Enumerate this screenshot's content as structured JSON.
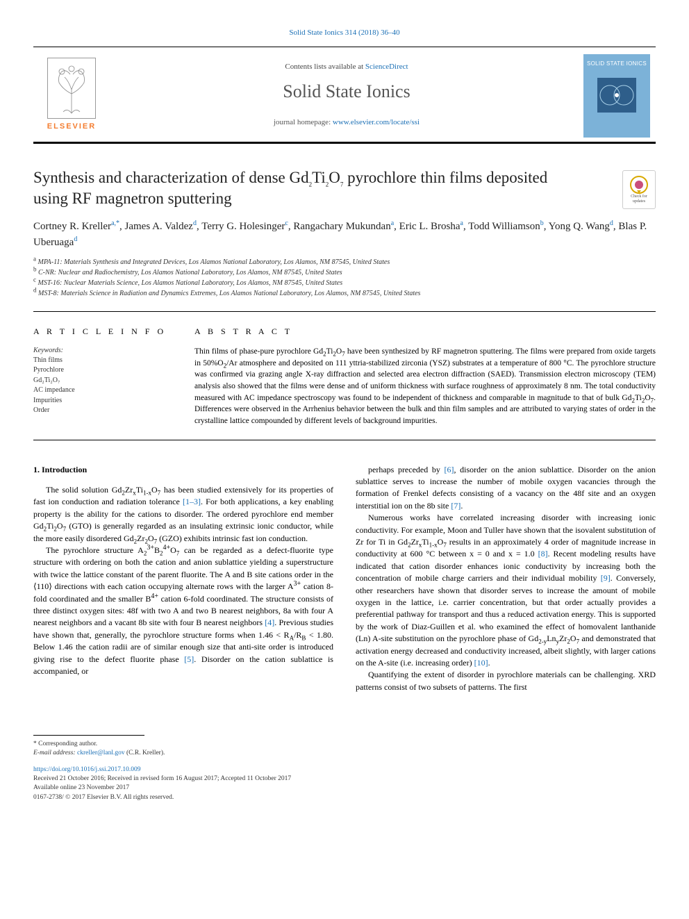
{
  "colors": {
    "link": "#1a6fb5",
    "elsevier_orange": "#f47d30",
    "cover_bg": "#7cb2d8",
    "text": "#000000",
    "muted": "#555555",
    "background": "#ffffff",
    "rule": "#000000"
  },
  "typography": {
    "body_family": "Georgia, 'Times New Roman', serif",
    "journal_name_pt": 26,
    "title_pt": 23,
    "authors_pt": 15,
    "body_pt": 12,
    "abstract_pt": 11.5,
    "affil_pt": 10,
    "footer_pt": 9.5
  },
  "header": {
    "top_citation_prefix": "",
    "top_citation_link_text": "Solid State Ionics 314 (2018) 36–40",
    "contents_prefix": "Contents lists available at ",
    "contents_link": "ScienceDirect",
    "journal_name": "Solid State Ionics",
    "homepage_prefix": "journal homepage: ",
    "homepage_url": "www.elsevier.com/locate/ssi",
    "elsevier_word": "ELSEVIER",
    "cover_title": "SOLID STATE IONICS"
  },
  "check_badge": {
    "line1": "Check for",
    "line2": "updates"
  },
  "title_html": "Synthesis and characterization of dense Gd<sub>2</sub>Ti<sub>2</sub>O<sub>7</sub> pyrochlore thin films deposited using RF magnetron sputtering",
  "authors_html": "Cortney R. Kreller<sup>a,*</sup>, James A. Valdez<sup>d</sup>, Terry G. Holesinger<sup>c</sup>, Rangachary Mukundan<sup>a</sup>, Eric L. Brosha<sup>a</sup>, Todd Williamson<sup>b</sup>, Yong Q. Wang<sup>d</sup>, Blas P. Uberuaga<sup>d</sup>",
  "affiliations": [
    {
      "sup": "a",
      "text": "MPA-11: Materials Synthesis and Integrated Devices, Los Alamos National Laboratory, Los Alamos, NM 87545, United States"
    },
    {
      "sup": "b",
      "text": "C-NR: Nuclear and Radiochemistry, Los Alamos National Laboratory, Los Alamos, NM 87545, United States"
    },
    {
      "sup": "c",
      "text": "MST-16: Nuclear Materials Science, Los Alamos National Laboratory, Los Alamos, NM 87545, United States"
    },
    {
      "sup": "d",
      "text": "MST-8: Materials Science in Radiation and Dynamics Extremes, Los Alamos National Laboratory, Los Alamos, NM 87545, United States"
    }
  ],
  "article_info": {
    "heading": "A R T I C L E  I N F O",
    "keywords_label": "Keywords:",
    "keywords": [
      "Thin films",
      "Pyrochlore",
      "Gd₂Ti₂O₇",
      "AC impedance",
      "Impurities",
      "Order"
    ]
  },
  "abstract": {
    "heading": "A B S T R A C T",
    "text_html": "Thin films of phase-pure pyrochlore Gd<sub>2</sub>Ti<sub>2</sub>O<sub>7</sub> have been synthesized by RF magnetron sputtering. The films were prepared from oxide targets in 50%O<sub>2</sub>/Ar atmosphere and deposited on 111 yttria-stabilized zirconia (YSZ) substrates at a temperature of 800 °C. The pyrochlore structure was confirmed via grazing angle X-ray diffraction and selected area electron diffraction (SAED). Transmission electron microscopy (TEM) analysis also showed that the films were dense and of uniform thickness with surface roughness of approximately 8 nm. The total conductivity measured with AC impedance spectroscopy was found to be independent of thickness and comparable in magnitude to that of bulk Gd<sub>2</sub>Ti<sub>2</sub>O<sub>7</sub>. Differences were observed in the Arrhenius behavior between the bulk and thin film samples and are attributed to varying states of order in the crystalline lattice compounded by different levels of background impurities."
  },
  "body": {
    "intro_heading": "1. Introduction",
    "paragraphs_html": [
      "The solid solution Gd<sub>2</sub>Zr<sub>x</sub>Ti<sub>1-x</sub>O<sub>7</sub> has been studied extensively for its properties of fast ion conduction and radiation tolerance <a class=\"ref-link\" href=\"#\">[1–3]</a>. For both applications, a key enabling property is the ability for the cations to disorder. The ordered pyrochlore end member Gd<sub>2</sub>Ti<sub>2</sub>O<sub>7</sub> (GTO) is generally regarded as an insulating extrinsic ionic conductor, while the more easily disordered Gd<sub>2</sub>Zr<sub>2</sub>O<sub>7</sub> (GZO) exhibits intrinsic fast ion conduction.",
      "The pyrochlore structure A<sub>2</sub><sup>3+</sup>B<sub>2</sub><sup>4+</sup>O<sub>7</sub> can be regarded as a defect-fluorite type structure with ordering on both the cation and anion sublattice yielding a superstructure with twice the lattice constant of the parent fluorite. The A and B site cations order in the ⟨110⟩ directions with each cation occupying alternate rows with the larger A<sup>3+</sup> cation 8-fold coordinated and the smaller B<sup>4+</sup> cation 6-fold coordinated. The structure consists of three distinct oxygen sites: 48f with two A and two B nearest neighbors, 8a with four A nearest neighbors and a vacant 8b site with four B nearest neighbors <a class=\"ref-link\" href=\"#\">[4]</a>. Previous studies have shown that, generally, the pyrochlore structure forms when 1.46 &lt; R<sub>A</sub>/R<sub>B</sub> &lt; 1.80. Below 1.46 the cation radii are of similar enough size that anti-site order is introduced giving rise to the defect fluorite phase <a class=\"ref-link\" href=\"#\">[5]</a>. Disorder on the cation sublattice is accompanied, or",
      "perhaps preceded by <a class=\"ref-link\" href=\"#\">[6]</a>, disorder on the anion sublattice. Disorder on the anion sublattice serves to increase the number of mobile oxygen vacancies through the formation of Frenkel defects consisting of a vacancy on the 48f site and an oxygen interstitial ion on the 8b site <a class=\"ref-link\" href=\"#\">[7]</a>.",
      "Numerous works have correlated increasing disorder with increasing ionic conductivity. For example, Moon and Tuller have shown that the isovalent substitution of Zr for Ti in Gd<sub>2</sub>Zr<sub>x</sub>Ti<sub>1-x</sub>O<sub>7</sub> results in an approximately 4 order of magnitude increase in conductivity at 600 °C between x = 0 and x = 1.0 <a class=\"ref-link\" href=\"#\">[8]</a>. Recent modeling results have indicated that cation disorder enhances ionic conductivity by increasing both the concentration of mobile charge carriers and their individual mobility <a class=\"ref-link\" href=\"#\">[9]</a>. Conversely, other researchers have shown that disorder serves to increase the amount of mobile oxygen in the lattice, i.e. carrier concentration, but that order actually provides a preferential pathway for transport and thus a reduced activation energy. This is supported by the work of Diaz-Guillen et al. who examined the effect of homovalent lanthanide (Ln) A-site substitution on the pyrochlore phase of Gd<sub>2-y</sub>Ln<sub>y</sub>Zr<sub>2</sub>O<sub>7</sub> and demonstrated that activation energy decreased and conductivity increased, albeit slightly, with larger cations on the A-site (i.e. increasing order) <a class=\"ref-link\" href=\"#\">[10]</a>.",
      "Quantifying the extent of disorder in pyrochlore materials can be challenging. XRD patterns consist of two subsets of patterns. The first"
    ]
  },
  "footer": {
    "corr_label": "* Corresponding author.",
    "email_label": "E-mail address: ",
    "email": "ckreller@lanl.gov",
    "email_person": " (C.R. Kreller).",
    "doi": "https://doi.org/10.1016/j.ssi.2017.10.009",
    "received": "Received 21 October 2016; Received in revised form 16 August 2017; Accepted 11 October 2017",
    "available": "Available online 23 November 2017",
    "copyright": "0167-2738/ © 2017 Elsevier B.V. All rights reserved."
  }
}
